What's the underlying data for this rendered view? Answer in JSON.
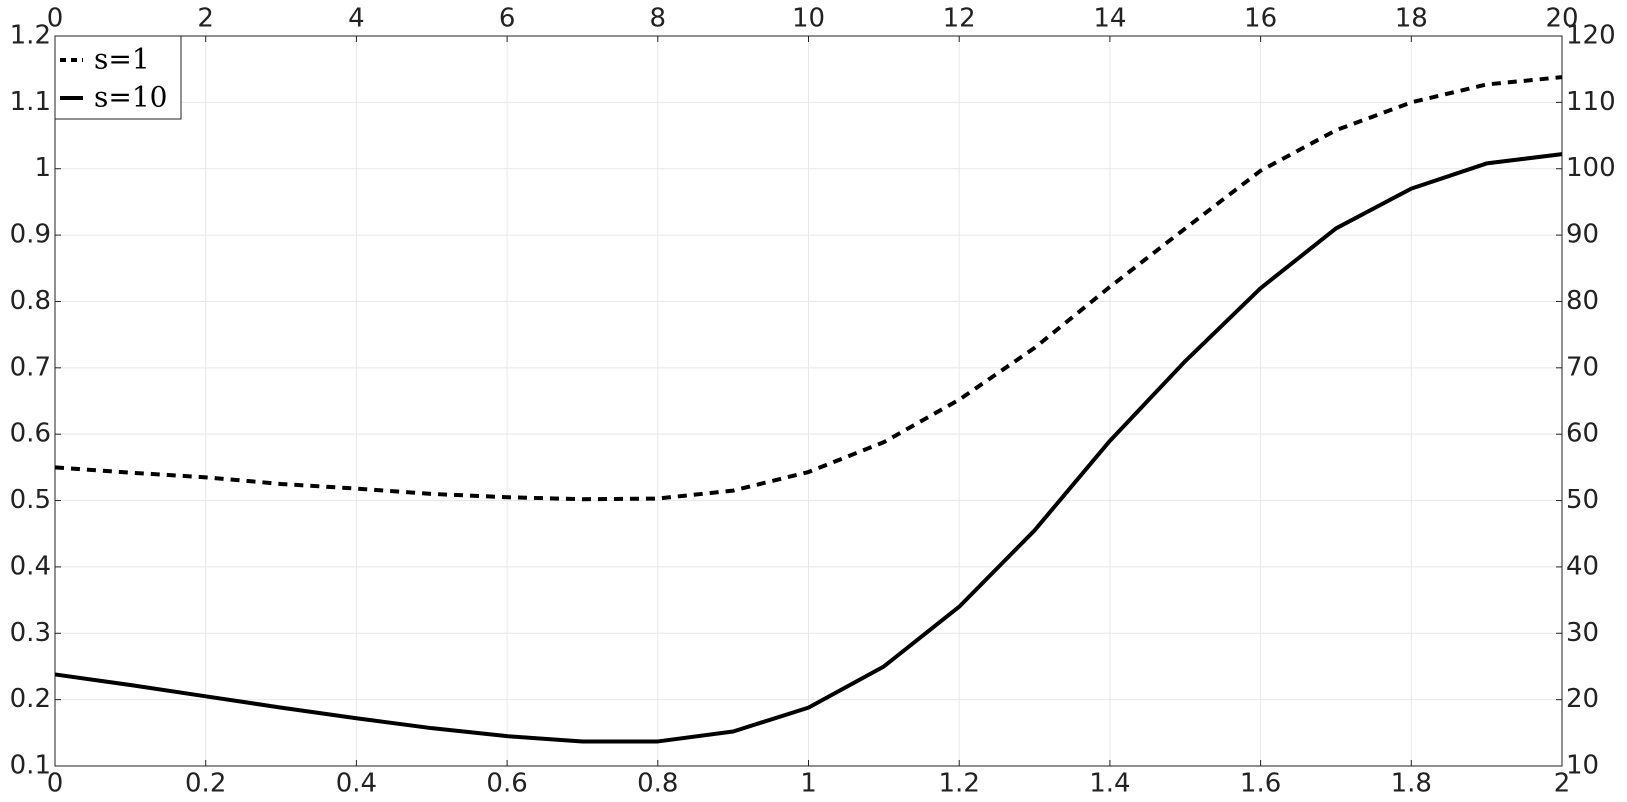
{
  "chart_data": {
    "type": "line",
    "x": [
      0,
      0.1,
      0.2,
      0.3,
      0.4,
      0.5,
      0.6,
      0.7,
      0.8,
      0.9,
      1.0,
      1.1,
      1.2,
      1.3,
      1.4,
      1.5,
      1.6,
      1.7,
      1.8,
      1.9,
      2.0
    ],
    "series": [
      {
        "name": "s=1",
        "color": "#000000",
        "linestyle": "dashed",
        "values": [
          0.55,
          0.542,
          0.535,
          0.525,
          0.518,
          0.51,
          0.505,
          0.502,
          0.503,
          0.515,
          0.543,
          0.588,
          0.652,
          0.73,
          0.822,
          0.91,
          0.997,
          1.058,
          1.1,
          1.127,
          1.138
        ]
      },
      {
        "name": "s=10",
        "color": "#000000",
        "linestyle": "solid",
        "values": [
          0.238,
          0.222,
          0.205,
          0.188,
          0.172,
          0.157,
          0.145,
          0.137,
          0.137,
          0.152,
          0.188,
          0.25,
          0.34,
          0.455,
          0.59,
          0.71,
          0.82,
          0.91,
          0.97,
          1.008,
          1.022
        ]
      }
    ],
    "xlim": [
      0,
      2
    ],
    "xticks": [
      0,
      0.2,
      0.4,
      0.6,
      0.8,
      1,
      1.2,
      1.4,
      1.6,
      1.8,
      2
    ],
    "x2lim": [
      0,
      20
    ],
    "x2ticks": [
      0,
      2,
      4,
      6,
      8,
      10,
      12,
      14,
      16,
      18,
      20
    ],
    "ylim": [
      0.1,
      1.2
    ],
    "yticks": [
      0.1,
      0.2,
      0.3,
      0.4,
      0.5,
      0.6,
      0.7,
      0.8,
      0.9,
      1,
      1.1,
      1.2
    ],
    "y2lim": [
      10,
      120
    ],
    "y2ticks": [
      10,
      20,
      30,
      40,
      50,
      60,
      70,
      80,
      90,
      100,
      110,
      120
    ],
    "grid": true,
    "legend": "upper left"
  }
}
